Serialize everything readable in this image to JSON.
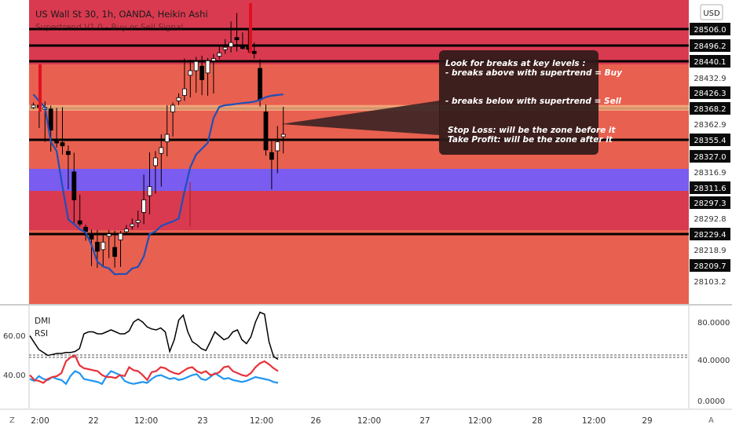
{
  "header": {
    "symbol_title": "US Wall St 30, 1h, OANDA, Heikin Ashi",
    "indicator_title": "Supertrend V1.0 - Buy or Sell Signal",
    "currency_button": "USD"
  },
  "colors": {
    "zone_red": "#d93a50",
    "zone_salmon": "#e8604f",
    "level_line": "#000000",
    "supertrend": "#1f4fb8",
    "support_band": "#7a5cf0",
    "resistance_band": "#f5b080",
    "rsi_red": "#e8323a",
    "dmi_blue": "#2196f3",
    "candle_up": "#ffffff",
    "candle_down": "#000000"
  },
  "annotation": {
    "lines": [
      "Look for breaks at key levels :",
      "- breaks above with supertrend = Buy",
      "- breaks below with supertrend = Sell",
      "Stop Loss: will be the zone before it",
      "Take Profit: will be the zone after it"
    ]
  },
  "chart_data": [
    {
      "type": "candlestick",
      "title": "US Wall St 30, 1h, OANDA, Heikin Ashi",
      "xlabel": "",
      "ylabel": "",
      "x_ticks": [
        "2:00",
        "22",
        "12:00",
        "23",
        "12:00",
        "26",
        "12:00",
        "27",
        "12:00",
        "28",
        "12:00",
        "29"
      ],
      "y_ticks": [
        "28506.0",
        "28496.2",
        "28440.1",
        "28432.9",
        "28426.3",
        "28368.2",
        "28362.9",
        "28355.4",
        "28327.0",
        "28316.9",
        "28311.6",
        "28297.3",
        "28292.8",
        "28229.4",
        "28218.9",
        "28209.7",
        "28103.2"
      ],
      "highlighted_ticks": [
        "28506.0",
        "28496.2",
        "28440.1",
        "28426.3",
        "28368.2",
        "28355.4",
        "28327.0",
        "28311.6",
        "28297.3",
        "28229.4",
        "28209.7"
      ],
      "key_levels": [
        28506.0,
        28496.2,
        28440.1,
        28368.2,
        28355.4,
        28316.9,
        28311.6,
        28229.4
      ],
      "support_zone": [
        28311.6,
        28316.9
      ],
      "resistance_zone": [
        28368.2,
        28372.0
      ],
      "series": [
        {
          "name": "Supertrend V1.0 - Buy or Sell Signal",
          "values": [
            28420,
            28395,
            28372,
            28352,
            28336,
            28312,
            28288,
            28270,
            28248,
            28236,
            28222,
            28212,
            28202,
            28190,
            28150,
            28152,
            28152,
            28190,
            28200,
            28215,
            28230,
            28240,
            28262,
            28272,
            28280,
            28292,
            28308,
            28320,
            28330,
            28340,
            28350,
            28365,
            28374,
            28380,
            28382,
            28385,
            28388,
            28390,
            28393,
            28400,
            28410,
            28415,
            28418,
            28420
          ]
        }
      ]
    },
    {
      "type": "line",
      "title": "DMI, RSI",
      "y_ticks_left": [
        "60.00",
        "40.00"
      ],
      "y_ticks_right": [
        "80.0000",
        "40.0000",
        "0.0000"
      ],
      "series": [
        {
          "name": "DMI",
          "values": [
            66,
            59,
            52,
            49,
            46,
            47,
            48,
            48,
            49,
            49,
            50,
            53,
            68,
            70,
            70,
            68,
            68,
            70,
            72,
            70,
            68,
            68,
            71,
            80,
            83,
            80,
            75,
            73,
            72,
            74,
            70,
            50,
            62,
            82,
            87,
            70,
            60,
            57,
            53,
            51,
            60,
            70,
            66,
            62,
            64,
            70,
            72,
            62,
            58,
            65,
            80,
            90,
            88,
            60,
            45,
            42
          ]
        },
        {
          "name": "RSI",
          "values": [
            22,
            20,
            25,
            22,
            21,
            24,
            22,
            21,
            17,
            25,
            30,
            28,
            22,
            21,
            20,
            19,
            17,
            25,
            30,
            28,
            26,
            20,
            18,
            17,
            18,
            19,
            18,
            22,
            25,
            26,
            24,
            22,
            23,
            21,
            22,
            24,
            26,
            27,
            22,
            21,
            24,
            28,
            25,
            22,
            23,
            21,
            20,
            19,
            20,
            22,
            24,
            23,
            22,
            21,
            19,
            18
          ]
        },
        {
          "name": "DMI-",
          "values": [
            26,
            21,
            20,
            18,
            22,
            24,
            25,
            28,
            40,
            44,
            46,
            36,
            33,
            32,
            31,
            30,
            26,
            24,
            24,
            23,
            26,
            25,
            34,
            31,
            30,
            26,
            21,
            29,
            30,
            34,
            33,
            30,
            28,
            27,
            30,
            33,
            34,
            30,
            28,
            30,
            26,
            27,
            29,
            34,
            35,
            30,
            28,
            26,
            25,
            28,
            34,
            38,
            40,
            37,
            33,
            30
          ]
        }
      ],
      "reference_lines": [
        40,
        42
      ]
    }
  ]
}
